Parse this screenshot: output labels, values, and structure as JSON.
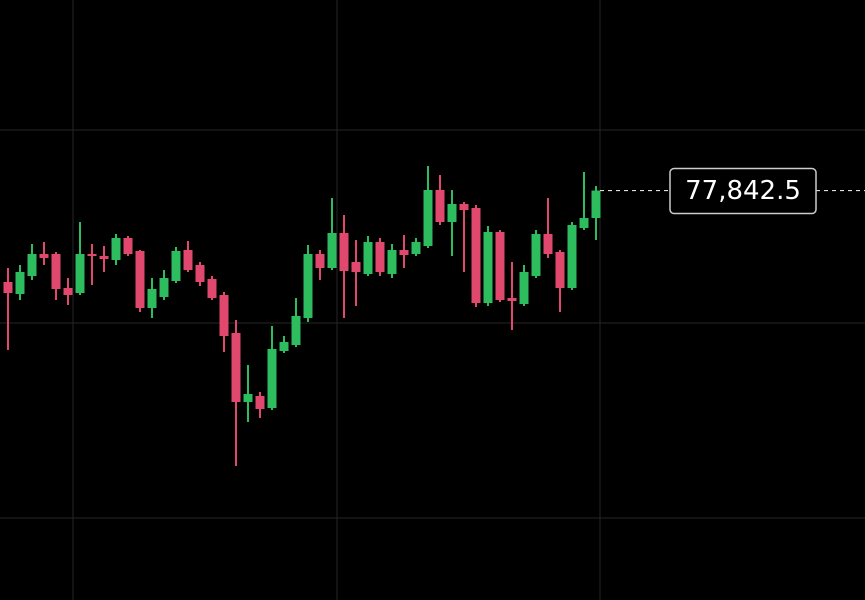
{
  "chart_data": {
    "type": "candlestick",
    "open": [
      77431,
      77377,
      77458,
      77557,
      77557,
      77404,
      77381.5,
      77557,
      77548,
      77530,
      77629,
      77570.5,
      77314,
      77363.5,
      77435.5,
      77575,
      77507.5,
      77444.5,
      77372.5,
      77201.5,
      76891,
      76918,
      76864,
      77120.5,
      77147.5,
      77269,
      77557,
      77494,
      77651.5,
      77521,
      77467,
      77611,
      77467,
      77575,
      77557,
      77593,
      77845,
      77701,
      77782,
      77764,
      77336.5,
      77656,
      77359,
      77332,
      77458,
      77647,
      77566,
      77404,
      77674,
      77719
    ],
    "high": [
      77494,
      77507.5,
      77602,
      77611,
      77566,
      77449,
      77701,
      77602,
      77593,
      77647,
      77638,
      77575,
      77449,
      77485,
      77588.5,
      77615.5,
      77521,
      77458,
      77386,
      77260,
      77057.5,
      76936,
      77233,
      77188,
      77359,
      77597.5,
      77575,
      77809,
      77732.5,
      77620,
      77638,
      77629,
      77602,
      77642.5,
      77629,
      77953,
      77912.5,
      77845,
      77791,
      77777.5,
      77683,
      77665,
      77521,
      77507.5,
      77665,
      77809,
      77575,
      77701,
      77926,
      77863
    ],
    "low": [
      77125,
      77350,
      77440,
      77507.5,
      77350,
      77327.5,
      77372.5,
      77417.5,
      77476,
      77507.5,
      77548,
      77296,
      77269,
      77350,
      77426.5,
      77476,
      77413,
      77350,
      77116,
      76603,
      76801,
      76819,
      76855,
      77111.5,
      77138.5,
      77251,
      77440,
      77485,
      77269,
      77323,
      77458,
      77458,
      77449,
      77494,
      77548,
      77584,
      77687.5,
      77548,
      77476,
      77318.5,
      77323,
      77341,
      77215,
      77323,
      77449,
      77539,
      77296,
      77395,
      77665,
      77620
    ],
    "close": [
      77381.5,
      77476,
      77557,
      77539,
      77399.5,
      77372.5,
      77557,
      77548,
      77534.5,
      77629,
      77557,
      77314,
      77399.5,
      77449,
      77570.5,
      77485,
      77431,
      77359,
      77188,
      76891,
      76927,
      76859.5,
      77129.5,
      77161,
      77278,
      77557,
      77494,
      77651.5,
      77480.5,
      77476,
      77611,
      77476,
      77575,
      77552.5,
      77611,
      77845,
      77701,
      77782,
      77755,
      77336.5,
      77656,
      77350,
      77345.5,
      77476,
      77647,
      77557,
      77404,
      77687.5,
      77719,
      77842.5
    ],
    "up_color": "#2dbd5e",
    "down_color": "#e0486e",
    "ylim": [
      76000,
      78700
    ],
    "yticks": [
      76369,
      77246.5,
      78115
    ],
    "grid": true,
    "price_line": {
      "value": 77842.5,
      "label": "77,842.5"
    }
  }
}
